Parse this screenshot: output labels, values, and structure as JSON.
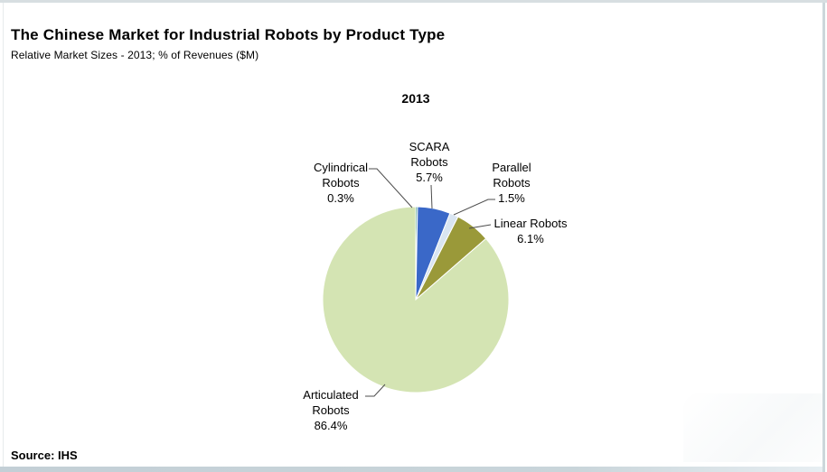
{
  "header": {
    "title": "The Chinese Market for Industrial Robots by Product Type",
    "subtitle": "Relative Market Sizes - 2013; % of Revenues ($M)"
  },
  "footer": {
    "source": "Source: IHS"
  },
  "chart_data": {
    "type": "pie",
    "title": "2013",
    "start_angle_deg": -90,
    "direction": "clockwise",
    "units": "% of Revenues ($M)",
    "slices": [
      {
        "name": "Cylindrical Robots",
        "value": 0.3,
        "pct_label": "0.3%",
        "color": "#2d8c7f"
      },
      {
        "name": "SCARA Robots",
        "value": 5.7,
        "pct_label": "5.7%",
        "color": "#3a68c8"
      },
      {
        "name": "Parallel Robots",
        "value": 1.5,
        "pct_label": "1.5%",
        "color": "#d9e5f1"
      },
      {
        "name": "Linear Robots",
        "value": 6.1,
        "pct_label": "6.1%",
        "color": "#9a9939"
      },
      {
        "name": "Articulated Robots",
        "value": 86.4,
        "pct_label": "86.4%",
        "color": "#d4e4b3"
      }
    ]
  }
}
